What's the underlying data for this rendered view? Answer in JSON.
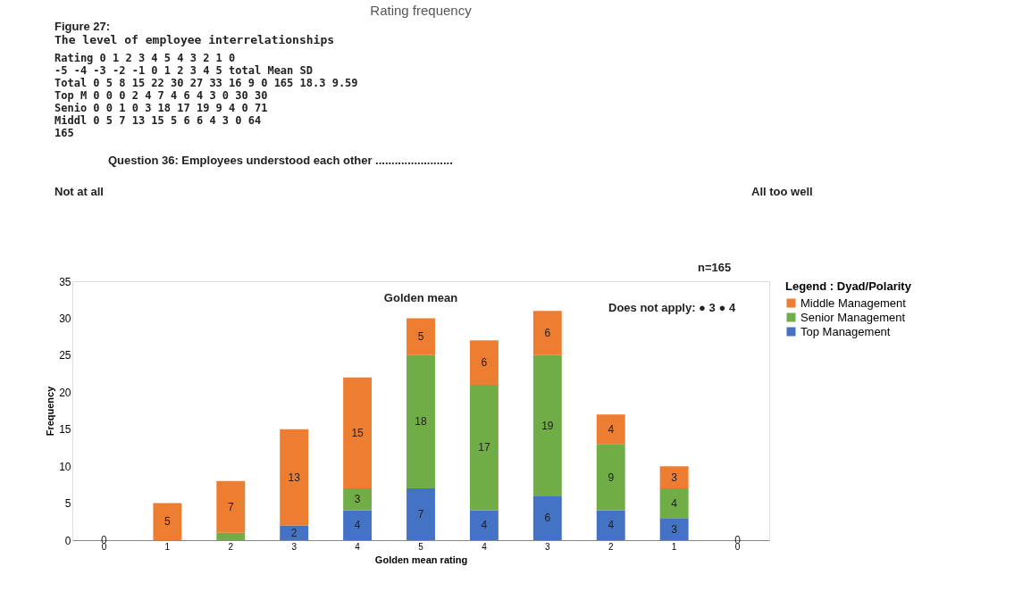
{
  "chart_data": {
    "type": "bar",
    "stacked": true,
    "title": "Rating frequency",
    "xlabel": "Golden mean rating",
    "ylabel": "Frequency",
    "legend_title": "Legend  : Dyad/Polarity",
    "categories": [
      "0",
      "1",
      "2",
      "3",
      "4",
      "5",
      "4",
      "3",
      "2",
      "1",
      "0"
    ],
    "series": [
      {
        "name": "Top Management",
        "color": "#4472c4",
        "values": [
          0,
          0,
          0,
          2,
          4,
          7,
          4,
          6,
          4,
          3,
          0
        ],
        "value_labels": [
          "0",
          null,
          null,
          "2",
          "4",
          "7",
          "4",
          "6",
          "4",
          "3",
          "0"
        ]
      },
      {
        "name": "Senior Management",
        "color": "#70ad47",
        "values": [
          0,
          0,
          1,
          0,
          3,
          18,
          17,
          19,
          9,
          4,
          0
        ],
        "value_labels": [
          null,
          null,
          null,
          null,
          "3",
          "18",
          "17",
          "19",
          "9",
          "4",
          null
        ]
      },
      {
        "name": "Middle Management",
        "color": "#ed7d31",
        "values": [
          0,
          5,
          7,
          13,
          15,
          5,
          6,
          6,
          4,
          3,
          0
        ],
        "value_labels": [
          null,
          "5",
          "7",
          "13",
          "15",
          "5",
          "6",
          "6",
          "4",
          "3",
          null
        ]
      }
    ],
    "ylim": [
      0,
      35
    ],
    "yticks": [
      0,
      5,
      10,
      15,
      20,
      25,
      30,
      35
    ],
    "grid": false,
    "legend": "right",
    "annotations": [
      "Figure 27:",
      "The level of employee interrelationships",
      "Rating 0 1 2 3 4 5 4 3 2 1 0",
      "-5 -4 -3 -2 -1 0 1 2 3 4 5 total Mean SD",
      "Total 0 5 8 15 22 30 27 33 16 9 0 165 18.3 9.59",
      "Top M 0 0 0 2 4 7 4 6 4 3 0 30 30",
      "Senio 0 0 1 0 3 18 17 19 9 4 0 71",
      "Middl 0 5 7 13 15 5 6 6 4 3 0 64",
      "165",
      "Question 36: Employees understood each other ........................",
      "Not at all",
      "All too well",
      "n=165",
      "Does not apply: ● 3  ● 4",
      {
        "text": "Golden mean",
        "x": "5",
        "y": 30
      }
    ]
  }
}
